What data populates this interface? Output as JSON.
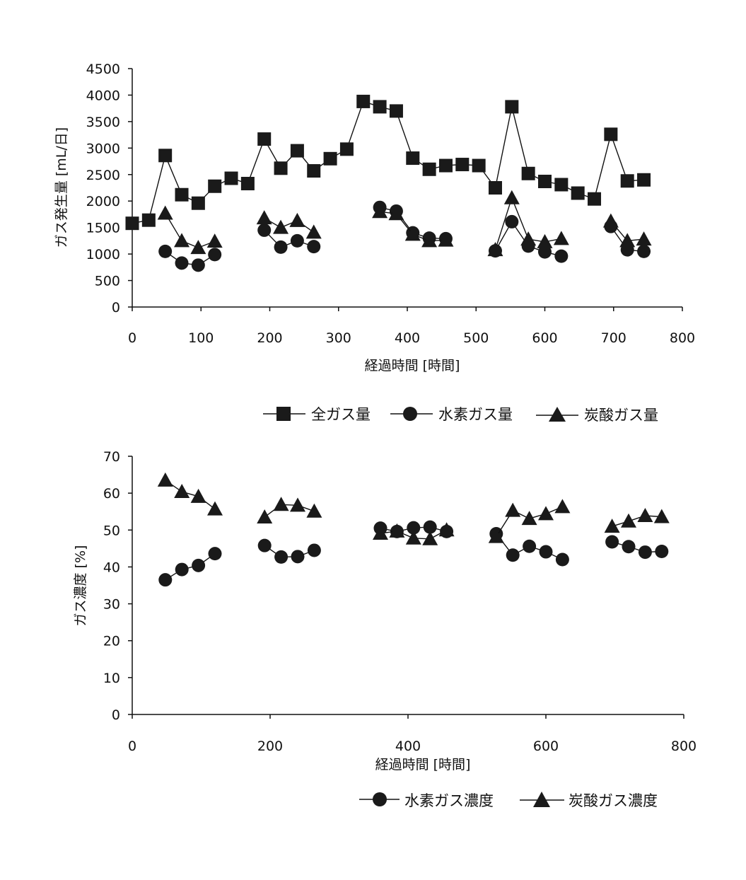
{
  "chart_data": [
    {
      "type": "line",
      "title": "",
      "xlabel": "経過時間 [時間]",
      "ylabel": "ガス発生量 [mL/日]",
      "xlim": [
        0,
        800
      ],
      "ylim": [
        0,
        4500
      ],
      "x_ticks": [
        "0",
        "100",
        "200",
        "300",
        "400",
        "500",
        "600",
        "700",
        "800"
      ],
      "y_ticks": [
        "0",
        "500",
        "1000",
        "1500",
        "2000",
        "2500",
        "3000",
        "3500",
        "4000",
        "4500"
      ],
      "grid": false,
      "legend_position": "bottom",
      "series": [
        {
          "name": "全ガス量",
          "marker": "square",
          "segments": [
            [
              [
                0,
                1580
              ],
              [
                24,
                1640
              ],
              [
                48,
                2860
              ],
              [
                72,
                2120
              ],
              [
                96,
                1960
              ],
              [
                120,
                2280
              ],
              [
                144,
                2430
              ],
              [
                168,
                2330
              ],
              [
                192,
                3170
              ],
              [
                216,
                2620
              ],
              [
                240,
                2950
              ],
              [
                264,
                2570
              ],
              [
                288,
                2800
              ],
              [
                312,
                2980
              ],
              [
                336,
                3880
              ],
              [
                360,
                3780
              ],
              [
                384,
                3700
              ],
              [
                408,
                2810
              ],
              [
                432,
                2600
              ],
              [
                456,
                2670
              ],
              [
                480,
                2690
              ],
              [
                504,
                2670
              ],
              [
                528,
                2250
              ],
              [
                552,
                3780
              ],
              [
                576,
                2520
              ],
              [
                600,
                2370
              ],
              [
                624,
                2310
              ],
              [
                648,
                2150
              ],
              [
                672,
                2040
              ],
              [
                696,
                3260
              ],
              [
                720,
                2380
              ],
              [
                744,
                2400
              ]
            ]
          ]
        },
        {
          "name": "水素ガス量",
          "marker": "circle",
          "segments": [
            [
              [
                48,
                1050
              ],
              [
                72,
                830
              ],
              [
                96,
                790
              ],
              [
                120,
                990
              ]
            ],
            [
              [
                192,
                1450
              ],
              [
                216,
                1130
              ],
              [
                240,
                1250
              ],
              [
                264,
                1140
              ]
            ],
            [
              [
                360,
                1880
              ],
              [
                384,
                1810
              ],
              [
                408,
                1400
              ],
              [
                432,
                1300
              ],
              [
                456,
                1290
              ]
            ],
            [
              [
                528,
                1060
              ],
              [
                552,
                1610
              ],
              [
                576,
                1150
              ],
              [
                600,
                1040
              ],
              [
                624,
                960
              ]
            ],
            [
              [
                696,
                1520
              ],
              [
                720,
                1080
              ],
              [
                744,
                1050
              ]
            ]
          ]
        },
        {
          "name": "炭酸ガス量",
          "marker": "triangle",
          "segments": [
            [
              [
                48,
                1770
              ],
              [
                72,
                1250
              ],
              [
                96,
                1120
              ],
              [
                120,
                1240
              ]
            ],
            [
              [
                192,
                1680
              ],
              [
                216,
                1500
              ],
              [
                240,
                1630
              ],
              [
                264,
                1410
              ]
            ],
            [
              [
                360,
                1800
              ],
              [
                384,
                1760
              ],
              [
                408,
                1370
              ],
              [
                432,
                1250
              ],
              [
                456,
                1260
              ]
            ],
            [
              [
                528,
                1080
              ],
              [
                552,
                2060
              ],
              [
                576,
                1280
              ],
              [
                600,
                1230
              ],
              [
                624,
                1290
              ]
            ],
            [
              [
                696,
                1620
              ],
              [
                720,
                1250
              ],
              [
                744,
                1280
              ]
            ]
          ]
        }
      ]
    },
    {
      "type": "line",
      "title": "",
      "xlabel": "経過時間 [時間]",
      "ylabel": "ガス濃度 [%]",
      "xlim": [
        0,
        800
      ],
      "ylim": [
        0,
        70
      ],
      "x_ticks": [
        "0",
        "200",
        "400",
        "600",
        "800"
      ],
      "y_ticks": [
        "0",
        "10",
        "20",
        "30",
        "40",
        "50",
        "60",
        "70"
      ],
      "grid": false,
      "legend_position": "bottom",
      "series": [
        {
          "name": "水素ガス濃度",
          "marker": "circle",
          "segments": [
            [
              [
                48,
                36.5
              ],
              [
                72,
                39.3
              ],
              [
                96,
                40.4
              ],
              [
                120,
                43.6
              ]
            ],
            [
              [
                192,
                45.8
              ],
              [
                216,
                42.7
              ],
              [
                240,
                42.8
              ],
              [
                264,
                44.5
              ]
            ],
            [
              [
                360,
                50.5
              ],
              [
                384,
                49.6
              ],
              [
                408,
                50.6
              ],
              [
                432,
                50.8
              ],
              [
                456,
                49.6
              ]
            ],
            [
              [
                528,
                49.0
              ],
              [
                552,
                43.2
              ],
              [
                576,
                45.6
              ],
              [
                600,
                44.1
              ],
              [
                624,
                42.0
              ]
            ],
            [
              [
                696,
                46.8
              ],
              [
                720,
                45.5
              ],
              [
                744,
                44.0
              ],
              [
                768,
                44.2
              ]
            ]
          ]
        },
        {
          "name": "炭酸ガス濃度",
          "marker": "triangle",
          "segments": [
            [
              [
                48,
                63.5
              ],
              [
                72,
                60.4
              ],
              [
                96,
                59.1
              ],
              [
                120,
                55.7
              ]
            ],
            [
              [
                192,
                53.5
              ],
              [
                216,
                56.9
              ],
              [
                240,
                56.7
              ],
              [
                264,
                55.1
              ]
            ],
            [
              [
                360,
                49.1
              ],
              [
                384,
                49.7
              ],
              [
                408,
                47.8
              ],
              [
                432,
                47.6
              ],
              [
                456,
                50.0
              ]
            ],
            [
              [
                528,
                48.2
              ],
              [
                552,
                55.3
              ],
              [
                576,
                53.1
              ],
              [
                600,
                54.4
              ],
              [
                624,
                56.3
              ]
            ],
            [
              [
                696,
                51.0
              ],
              [
                720,
                52.4
              ],
              [
                744,
                53.9
              ],
              [
                768,
                53.6
              ]
            ]
          ]
        }
      ]
    }
  ]
}
